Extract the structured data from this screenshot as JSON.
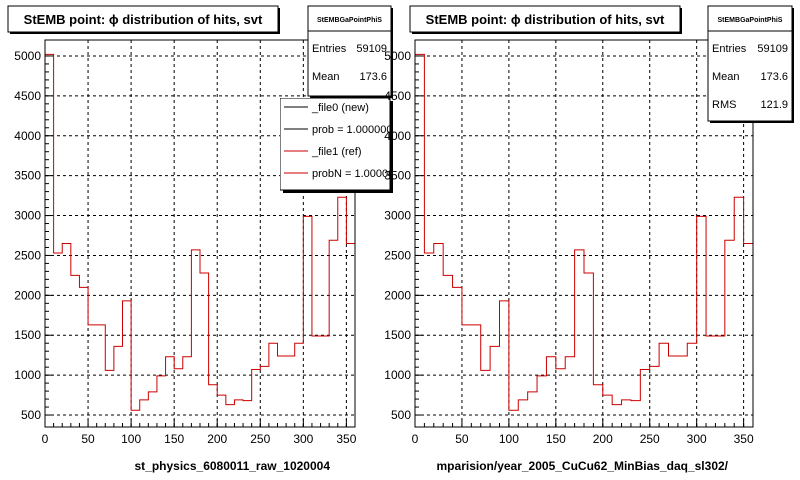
{
  "chart_data": [
    {
      "type": "line",
      "title": "StEMB point:  ϕ distribution of hits, svt",
      "xlabel": "st_physics_6080011_raw_1020004",
      "ylabel": "",
      "xlim": [
        0,
        360
      ],
      "ylim": [
        350,
        5200
      ],
      "xticks": [
        0,
        50,
        100,
        150,
        200,
        250,
        300,
        350
      ],
      "yticks": [
        500,
        1000,
        1500,
        2000,
        2500,
        3000,
        3500,
        4000,
        4500,
        5000
      ],
      "grid": true,
      "stats": {
        "name": "StEMBGaPointPhiS",
        "rows": [
          {
            "label": "Entries",
            "value": "59109"
          },
          {
            "label": "Mean",
            "value": "173.6"
          }
        ]
      },
      "legend": {
        "position": "top-right",
        "entries": [
          {
            "label": "_file0 (new)",
            "color": "#000000"
          },
          {
            "label": "prob = 1.000000",
            "color": "#000000"
          },
          {
            "label": "_file1 (ref)",
            "color": "#cc0000"
          },
          {
            "label": "probN = 1.000000",
            "color": "#cc0000"
          }
        ]
      },
      "series": [
        {
          "color": "#cc0000",
          "bin_width": 10,
          "bin_edges_start": 0,
          "values": [
            5020,
            2530,
            2650,
            2250,
            2100,
            1630,
            1630,
            1060,
            1360,
            1930,
            560,
            690,
            790,
            990,
            1230,
            1080,
            1230,
            2570,
            2280,
            880,
            750,
            630,
            690,
            680,
            1070,
            1110,
            1400,
            1240,
            1240,
            1400,
            2990,
            1490,
            1490,
            2690,
            3230,
            2650
          ]
        }
      ]
    },
    {
      "type": "line",
      "title": "StEMB point:  ϕ distribution of hits, svt",
      "xlabel": "mparision/year_2005_CuCu62_MinBias_daq_sl302/",
      "ylabel": "",
      "xlim": [
        0,
        360
      ],
      "ylim": [
        350,
        5200
      ],
      "xticks": [
        0,
        50,
        100,
        150,
        200,
        250,
        300,
        350
      ],
      "yticks": [
        500,
        1000,
        1500,
        2000,
        2500,
        3000,
        3500,
        4000,
        4500,
        5000
      ],
      "grid": true,
      "stats": {
        "name": "StEMBGaPointPhiS",
        "rows": [
          {
            "label": "Entries",
            "value": "59109"
          },
          {
            "label": "Mean",
            "value": "173.6"
          },
          {
            "label": "RMS",
            "value": "121.9"
          }
        ]
      },
      "series": [
        {
          "color": "#cc0000",
          "bin_width": 10,
          "bin_edges_start": 0,
          "values": [
            5020,
            2530,
            2650,
            2250,
            2100,
            1630,
            1630,
            1060,
            1360,
            1930,
            560,
            690,
            790,
            990,
            1230,
            1080,
            1230,
            2570,
            2280,
            880,
            750,
            630,
            690,
            680,
            1070,
            1110,
            1400,
            1240,
            1240,
            1400,
            2990,
            1490,
            1490,
            2690,
            3230,
            2650
          ]
        }
      ]
    }
  ]
}
